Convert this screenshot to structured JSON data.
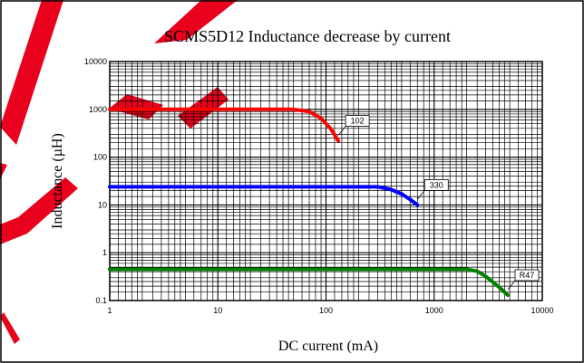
{
  "chart_data": {
    "type": "line",
    "title": "SCMS5D12 Inductance decrease by current",
    "xlabel": "DC current (mA)",
    "ylabel": "Inductance (µH)",
    "x_scale": "log",
    "y_scale": "log",
    "xlim": [
      1,
      10000
    ],
    "ylim": [
      0.1,
      10000
    ],
    "x_ticks": [
      1,
      10,
      100,
      1000,
      10000
    ],
    "x_tick_labels": [
      "1",
      "10",
      "100",
      "1000",
      "10000"
    ],
    "y_ticks": [
      0.1,
      1,
      10,
      100,
      1000,
      10000
    ],
    "y_tick_labels": [
      "0.1",
      "1",
      "10",
      "100",
      "1000",
      "10000"
    ],
    "grid": true,
    "series": [
      {
        "name": "102",
        "color": "#ff0000",
        "x": [
          1,
          10,
          50,
          70,
          90,
          110,
          130
        ],
        "y": [
          1000,
          1000,
          1000,
          900,
          650,
          400,
          220
        ]
      },
      {
        "name": "330",
        "color": "#0000ff",
        "x": [
          1,
          10,
          100,
          300,
          400,
          500,
          600,
          700
        ],
        "y": [
          24,
          24,
          24,
          24,
          21,
          17,
          13,
          10
        ]
      },
      {
        "name": "R47",
        "color": "#008000",
        "x": [
          1,
          10,
          100,
          1000,
          2000,
          2500,
          3000,
          4000,
          4800
        ],
        "y": [
          0.45,
          0.45,
          0.45,
          0.45,
          0.45,
          0.41,
          0.32,
          0.19,
          0.13
        ]
      }
    ]
  },
  "watermark": {
    "text": "SAMPLE",
    "color": "#e8001c"
  }
}
